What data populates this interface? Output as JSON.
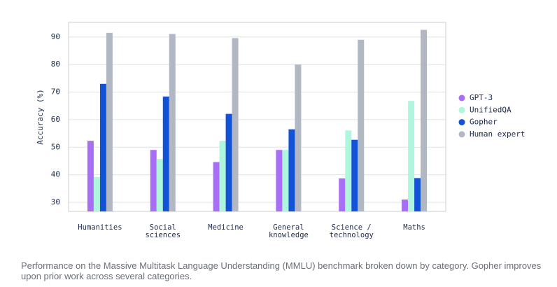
{
  "chart_data": {
    "type": "bar",
    "y_label": "Accuracy (%)",
    "categories": [
      "Humanities",
      "Social\nsciences",
      "Medicine",
      "General\nknowledge",
      "Science /\ntechnology",
      "Maths"
    ],
    "series": [
      {
        "name": "GPT-3",
        "color": "#a86ef5",
        "values": [
          52.3,
          49,
          44.6,
          49,
          38.7,
          31
        ]
      },
      {
        "name": "UnifiedQA",
        "color": "#aef7dc",
        "values": [
          39.2,
          45.7,
          52.3,
          49,
          56.1,
          66.8
        ]
      },
      {
        "name": "Gopher",
        "color": "#1252d6",
        "values": [
          73,
          68.4,
          62.1,
          56.5,
          52.7,
          38.8
        ]
      },
      {
        "name": "Human expert",
        "color": "#b1b8c3",
        "values": [
          91.5,
          91.1,
          89.6,
          80,
          89,
          92.6
        ]
      }
    ],
    "ylim": [
      26.7,
      95.3
    ],
    "yticks": [
      30,
      40,
      50,
      60,
      70,
      80,
      90
    ],
    "grid": true,
    "caption": "Performance on the Massive Multitask Language Understanding (MMLU) benchmark broken down by category. Gopher improves upon prior work across several categories."
  }
}
